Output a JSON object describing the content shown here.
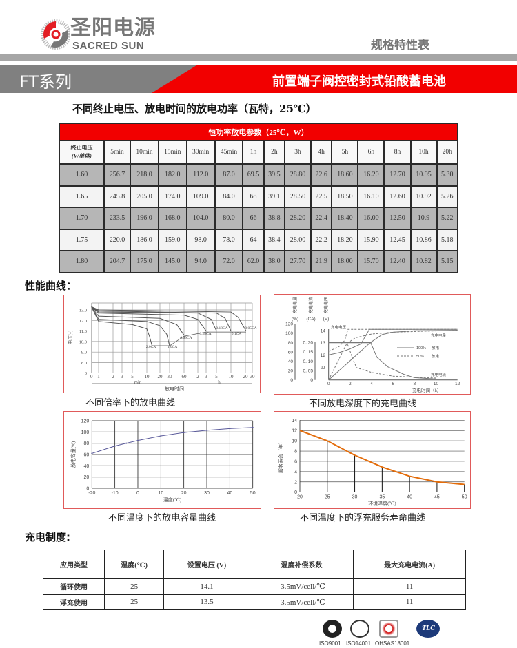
{
  "brand": {
    "name_cn": "圣阳电源",
    "name_en": "SACRED SUN",
    "colors": {
      "red": "#e31e24",
      "gray": "#808080"
    }
  },
  "header": {
    "doc_type": "规格特性表",
    "series": "FT系列",
    "product": "前置端子阀控密封式铅酸蓄电池"
  },
  "power_section": {
    "subtitle": "不同终止电压、放电时间的放电功率（瓦特，25℃）",
    "table_title": "恒功率放电参数（25℃，W）",
    "first_col_header": [
      "终止电压",
      "(V/单体)"
    ],
    "columns": [
      "5min",
      "10min",
      "15min",
      "30min",
      "45min",
      "1h",
      "2h",
      "3h",
      "4h",
      "5h",
      "6h",
      "8h",
      "10h",
      "20h"
    ],
    "rows": [
      {
        "voltage": "1.60",
        "values": [
          "256.7",
          "218.0",
          "182.0",
          "112.0",
          "87.0",
          "69.5",
          "39.5",
          "28.80",
          "22.6",
          "18.60",
          "16.20",
          "12.70",
          "10.95",
          "5.30"
        ]
      },
      {
        "voltage": "1.65",
        "values": [
          "245.8",
          "205.0",
          "174.0",
          "109.0",
          "84.0",
          "68",
          "39.1",
          "28.50",
          "22.5",
          "18.50",
          "16.10",
          "12.60",
          "10.92",
          "5.26"
        ]
      },
      {
        "voltage": "1.70",
        "values": [
          "233.5",
          "196.0",
          "168.0",
          "104.0",
          "80.0",
          "66",
          "38.8",
          "28.20",
          "22.4",
          "18.40",
          "16.00",
          "12.50",
          "10.9",
          "5.22"
        ]
      },
      {
        "voltage": "1.75",
        "values": [
          "220.0",
          "186.0",
          "159.0",
          "98.0",
          "78.0",
          "64",
          "38.4",
          "28.00",
          "22.2",
          "18.20",
          "15.90",
          "12.45",
          "10.86",
          "5.18"
        ]
      },
      {
        "voltage": "1.80",
        "values": [
          "204.7",
          "175.0",
          "145.0",
          "94.0",
          "72.0",
          "62.0",
          "38.0",
          "27.70",
          "21.9",
          "18.00",
          "15.70",
          "12.40",
          "10.82",
          "5.15"
        ]
      }
    ]
  },
  "performance_section": {
    "title": "性能曲线："
  },
  "chart_data": [
    {
      "type": "line",
      "caption": "不同倍率下的放电曲线",
      "ylabel": "电压(v)",
      "xlabel": "放电时间",
      "x_unit_labels": [
        "min",
        "h"
      ],
      "x_ticks": [
        {
          "label": "0",
          "minutes": 0
        },
        {
          "label": "1",
          "minutes": 1
        },
        {
          "label": "2",
          "minutes": 2
        },
        {
          "label": "3",
          "minutes": 3
        },
        {
          "label": "5",
          "minutes": 5
        },
        {
          "label": "10",
          "minutes": 10
        },
        {
          "label": "20",
          "minutes": 20
        },
        {
          "label": "30",
          "minutes": 30
        },
        {
          "label": "60",
          "minutes": 60
        },
        {
          "label": "2",
          "minutes": 120
        },
        {
          "label": "3",
          "minutes": 180
        },
        {
          "label": "5",
          "minutes": 300
        },
        {
          "label": "10",
          "minutes": 600
        },
        {
          "label": "20",
          "minutes": 1200
        },
        {
          "label": "30",
          "minutes": 1800
        }
      ],
      "y_ticks": [
        "13.0",
        "12.0",
        "11.0",
        "10.0",
        "9.0",
        "8.0",
        "0"
      ],
      "grid": true,
      "line_color": "#555555",
      "series": [
        {
          "name": "2.0CA",
          "points": [
            [
              0,
              13.3
            ],
            [
              1,
              11.9
            ],
            [
              5,
              11.6
            ],
            [
              10,
              11.2
            ],
            [
              12,
              10.5
            ],
            [
              14,
              9.6
            ]
          ]
        },
        {
          "name": "1.0CA",
          "points": [
            [
              0,
              13.3
            ],
            [
              1,
              12.1
            ],
            [
              10,
              11.9
            ],
            [
              20,
              11.5
            ],
            [
              27,
              10.7
            ],
            [
              30,
              9.6
            ]
          ]
        },
        {
          "name": "0.69CA",
          "points": [
            [
              0,
              13.3
            ],
            [
              1,
              12.4
            ],
            [
              20,
              12.2
            ],
            [
              45,
              11.6
            ],
            [
              60,
              10.6
            ]
          ]
        },
        {
          "name": "0.28CA",
          "points": [
            [
              0,
              13.3
            ],
            [
              1,
              12.7
            ],
            [
              60,
              12.5
            ],
            [
              120,
              12.1
            ],
            [
              180,
              11.0
            ]
          ]
        },
        {
          "name": "0.18CA",
          "points": [
            [
              0,
              13.3
            ],
            [
              1,
              12.8
            ],
            [
              120,
              12.7
            ],
            [
              240,
              12.1
            ],
            [
              300,
              11.0
            ]
          ]
        },
        {
          "name": "0.1CA",
          "points": [
            [
              0,
              13.3
            ],
            [
              1,
              12.9
            ],
            [
              300,
              12.7
            ],
            [
              480,
              12.2
            ],
            [
              600,
              11.0
            ]
          ]
        },
        {
          "name": "0.05CA",
          "points": [
            [
              0,
              13.3
            ],
            [
              1,
              13.0
            ],
            [
              600,
              12.8
            ],
            [
              900,
              12.3
            ],
            [
              1260,
              11.0
            ]
          ]
        }
      ]
    },
    {
      "type": "line",
      "caption": "不同放电深度下的充电曲线",
      "xlabel": "充电时间（h）",
      "xlim": [
        0,
        12
      ],
      "x_ticks": [
        "0",
        "2",
        "4",
        "6",
        "8",
        "10",
        "12"
      ],
      "axes": [
        {
          "title": "充电电量",
          "unit": "(%)",
          "ticks": [
            "0",
            "20",
            "40",
            "60",
            "80",
            "100",
            "120"
          ]
        },
        {
          "title": "充电电流",
          "unit": "(CA)",
          "ticks": [
            "0",
            "0. 05",
            "0. 10",
            "0. 15",
            "0. 20"
          ]
        },
        {
          "title": "充电电压",
          "unit": "(V)",
          "ticks": [
            "11",
            "12",
            "13",
            "14"
          ]
        }
      ],
      "annotations": [
        "充电电压",
        "充电电量",
        "充电电流"
      ],
      "legend": [
        {
          "label": "100%",
          "suffix": "放电",
          "style": "solid"
        },
        {
          "label": "50%",
          "suffix": "放电",
          "style": "dashed"
        }
      ],
      "series": [
        {
          "axis": "voltage",
          "style": "solid",
          "points": [
            [
              0,
              12
            ],
            [
              1,
              12.2
            ],
            [
              2,
              12.5
            ],
            [
              3,
              12.9
            ],
            [
              3.8,
              14.1
            ],
            [
              12,
              14.1
            ]
          ]
        },
        {
          "axis": "voltage",
          "style": "dashed",
          "points": [
            [
              0,
              12.3
            ],
            [
              1,
              12.7
            ],
            [
              1.5,
              13.2
            ],
            [
              1.8,
              14.1
            ],
            [
              12,
              14.1
            ]
          ]
        },
        {
          "axis": "current",
          "style": "solid",
          "points": [
            [
              0,
              0.2
            ],
            [
              3.9,
              0.2
            ],
            [
              4.5,
              0.12
            ],
            [
              5.5,
              0.07
            ],
            [
              7,
              0.03
            ],
            [
              8,
              0.012
            ],
            [
              10,
              0.005
            ]
          ]
        },
        {
          "axis": "current",
          "style": "dashed",
          "points": [
            [
              0,
              0.2
            ],
            [
              1.7,
              0.2
            ],
            [
              2.2,
              0.12
            ],
            [
              2.6,
              0.065
            ],
            [
              4,
              0.04
            ],
            [
              6,
              0.02
            ],
            [
              10,
              0.01
            ]
          ]
        },
        {
          "axis": "capacity",
          "style": "solid",
          "points": [
            [
              0,
              0
            ],
            [
              3.9,
              80
            ],
            [
              5,
              97
            ],
            [
              6,
              102
            ],
            [
              8,
              105
            ],
            [
              12,
              106
            ]
          ]
        },
        {
          "axis": "capacity",
          "style": "dashed",
          "points": [
            [
              0,
              0
            ],
            [
              1.7,
              78
            ],
            [
              2.5,
              90
            ],
            [
              4,
              98
            ],
            [
              6,
              102
            ],
            [
              12,
              106
            ]
          ]
        }
      ]
    },
    {
      "type": "line",
      "caption": "不同温度下的放电容量曲线",
      "ylabel": "放电容量(%)",
      "xlabel": "温度(℃)",
      "xlim": [
        -20,
        50
      ],
      "ylim": [
        0,
        120
      ],
      "x_ticks": [
        "-20",
        "-10",
        "0",
        "10",
        "20",
        "30",
        "40",
        "50"
      ],
      "y_ticks": [
        "0",
        "20",
        "40",
        "60",
        "80",
        "100",
        "120"
      ],
      "grid": true,
      "line_color": "#5a5a9a",
      "x": [
        -20,
        -10,
        -5,
        0,
        10,
        20,
        30,
        40,
        50
      ],
      "y": [
        62,
        75,
        80,
        85,
        93,
        99,
        103,
        106,
        108
      ]
    },
    {
      "type": "line",
      "caption": "不同温度下的浮充服务寿命曲线",
      "ylabel": "服务寿命（年）",
      "xlabel": "环境温度(℃)",
      "xlim": [
        20,
        50
      ],
      "ylim": [
        0,
        14
      ],
      "x_ticks": [
        "20",
        "25",
        "30",
        "35",
        "40",
        "45",
        "50"
      ],
      "y_ticks": [
        "0",
        "2",
        "4",
        "6",
        "8",
        "10",
        "12",
        "14"
      ],
      "grid": true,
      "line_color": "#e36c0a",
      "x": [
        20,
        25,
        30,
        35,
        40,
        45,
        50
      ],
      "y": [
        12,
        10,
        7.2,
        4.9,
        3.1,
        2,
        1.5
      ]
    }
  ],
  "charge_section": {
    "title": "充电制度:",
    "headers": [
      "应用类型",
      "温度(℃)",
      "设置电压 (V)",
      "温度补偿系数",
      "最大充电电流(A)"
    ],
    "rows": [
      [
        "循环使用",
        "25",
        "14.1",
        "-3.5mV/cell/℃",
        "11"
      ],
      [
        "浮充使用",
        "25",
        "13.5",
        "-3.5mV/cell/℃",
        "11"
      ]
    ]
  },
  "certifications": [
    "ISO9001",
    "ISO14001",
    "OHSAS18001",
    "TLC"
  ]
}
